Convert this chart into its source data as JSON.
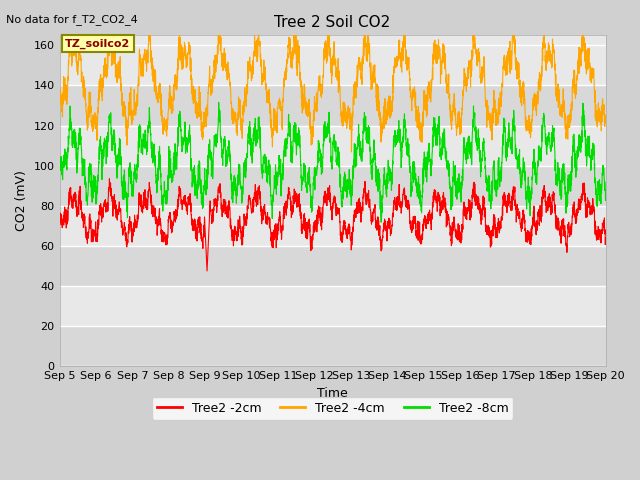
{
  "title": "Tree 2 Soil CO2",
  "no_data_text": "No data for f_T2_CO2_4",
  "xlabel": "Time",
  "ylabel": "CO2 (mV)",
  "ylim": [
    0,
    165
  ],
  "yticks": [
    0,
    20,
    40,
    60,
    80,
    100,
    120,
    140,
    160
  ],
  "xstart": 5,
  "xend": 20,
  "xtick_labels": [
    "Sep 5",
    "Sep 6",
    "Sep 7",
    "Sep 8",
    "Sep 9",
    "Sep 10",
    "Sep 11",
    "Sep 12",
    "Sep 13",
    "Sep 14",
    "Sep 15",
    "Sep 16",
    "Sep 17",
    "Sep 18",
    "Sep 19",
    "Sep 20"
  ],
  "fig_bg_color": "#d0d0d0",
  "plot_bg_color": "#e8e8e8",
  "legend_box_text": "TZ_soilco2",
  "legend_box_bg": "#ffffaa",
  "legend_box_edge": "#888800",
  "line_red": "#ff0000",
  "line_orange": "#ffa500",
  "line_green": "#00dd00",
  "legend_labels": [
    "Tree2 -2cm",
    "Tree2 -4cm",
    "Tree2 -8cm"
  ],
  "title_fontsize": 11,
  "axis_label_fontsize": 9,
  "tick_fontsize": 8,
  "legend_fontsize": 9,
  "band_colors": [
    "#d8d8d8",
    "#e8e8e8"
  ]
}
